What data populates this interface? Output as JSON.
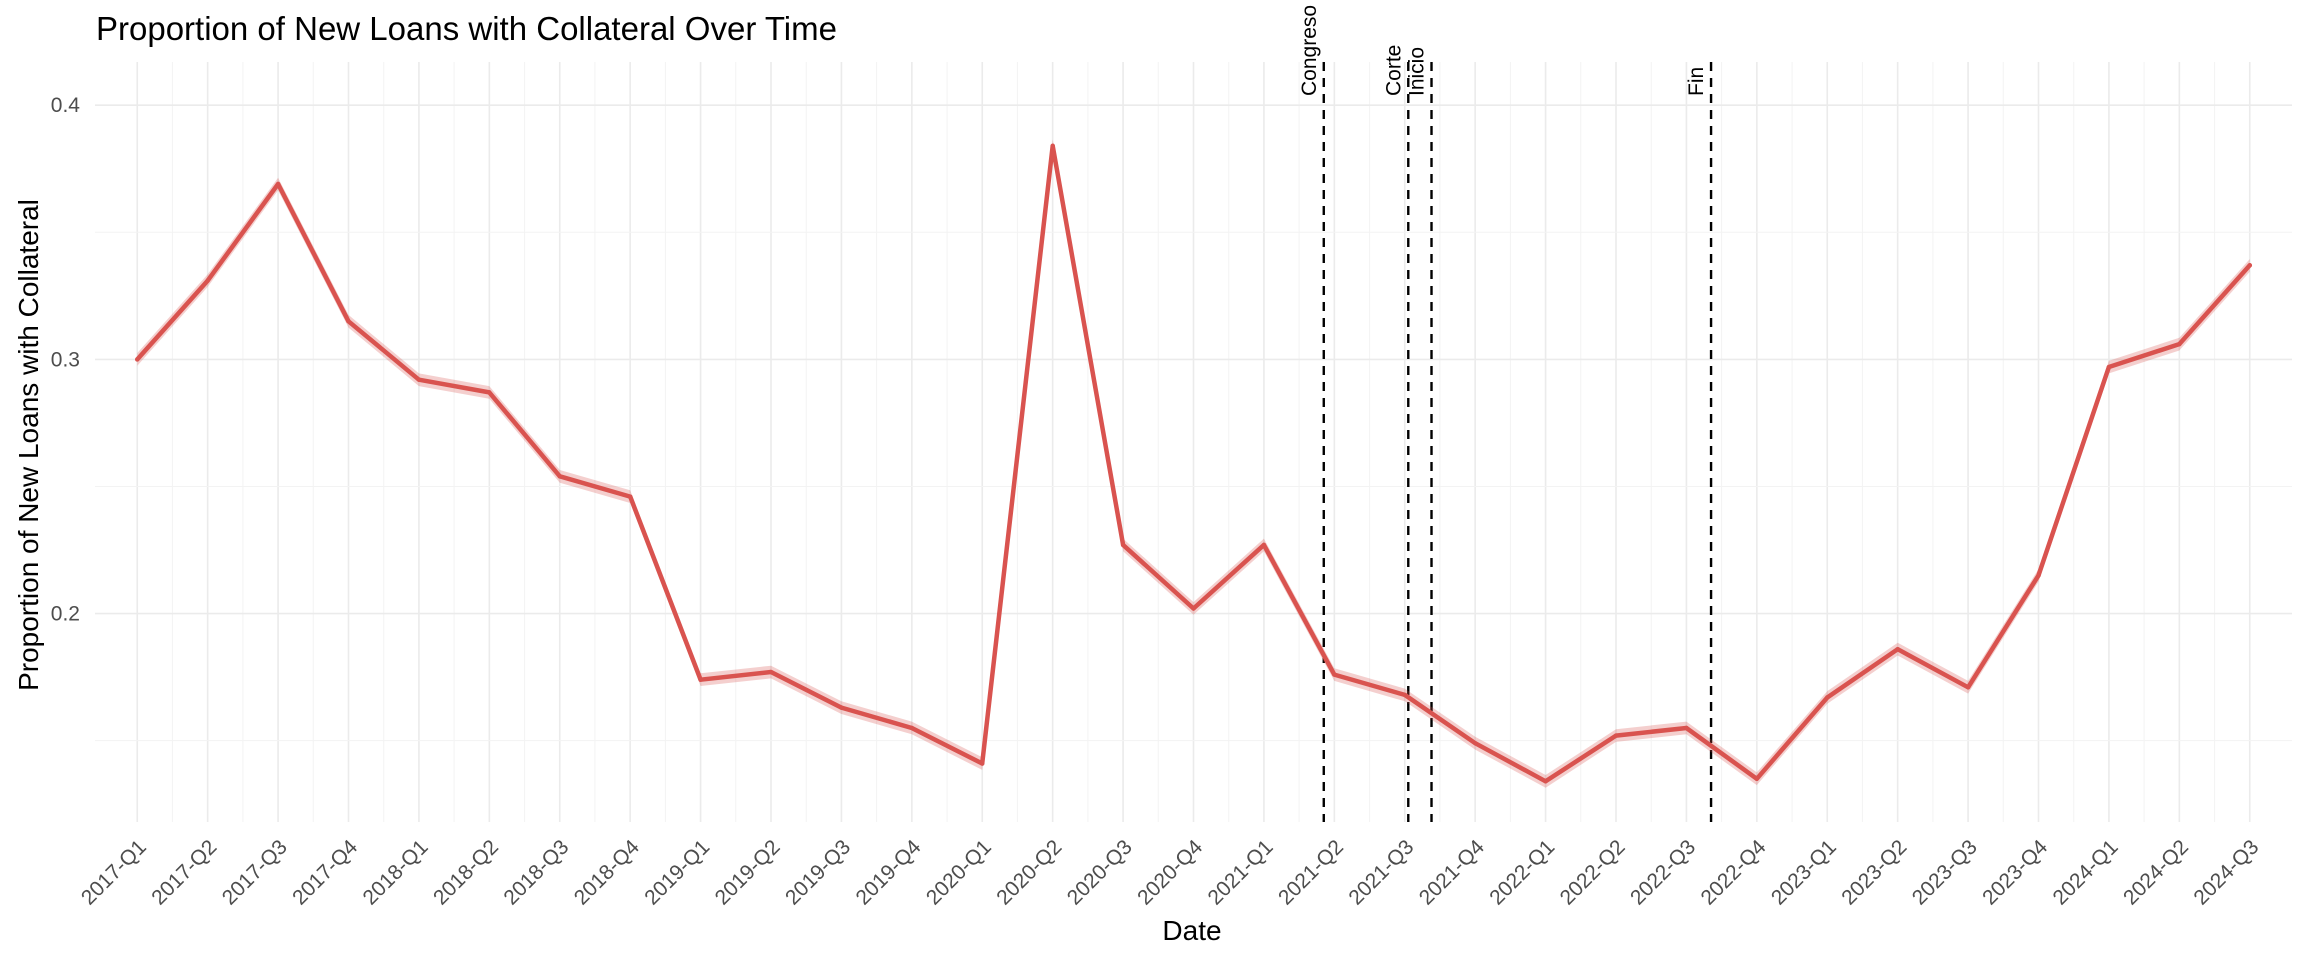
{
  "chart_data": {
    "type": "line",
    "title": "Proportion of New Loans with Collateral Over Time",
    "xlabel": "Date",
    "ylabel": "Proportion of New Loans with Collateral",
    "categories": [
      "2017-Q1",
      "2017-Q2",
      "2017-Q3",
      "2017-Q4",
      "2018-Q1",
      "2018-Q2",
      "2018-Q3",
      "2018-Q4",
      "2019-Q1",
      "2019-Q2",
      "2019-Q3",
      "2019-Q4",
      "2020-Q1",
      "2020-Q2",
      "2020-Q3",
      "2020-Q4",
      "2021-Q1",
      "2021-Q2",
      "2021-Q3",
      "2021-Q4",
      "2022-Q1",
      "2022-Q2",
      "2022-Q3",
      "2022-Q4",
      "2023-Q1",
      "2023-Q2",
      "2023-Q3",
      "2023-Q4",
      "2024-Q1",
      "2024-Q2",
      "2024-Q3"
    ],
    "series": [
      {
        "name": "",
        "color": "#d9534f",
        "values": [
          0.3,
          0.331,
          0.369,
          0.315,
          0.292,
          0.287,
          0.254,
          0.246,
          0.174,
          0.177,
          0.163,
          0.155,
          0.141,
          0.384,
          0.227,
          0.202,
          0.227,
          0.176,
          0.168,
          0.149,
          0.134,
          0.152,
          0.155,
          0.135,
          0.167,
          0.186,
          0.171,
          0.215,
          0.297,
          0.306,
          0.337
        ],
        "ribbon_halfwidth": 0.0025
      }
    ],
    "events": [
      {
        "label": "Congreso",
        "x_quarter": 17.85
      },
      {
        "label": "Corte",
        "x_quarter": 19.05
      },
      {
        "label": "Inicio",
        "x_quarter": 19.38
      },
      {
        "label": "Fin",
        "x_quarter": 23.35
      }
    ],
    "yticks": [
      0.2,
      0.3,
      0.4
    ],
    "ylim": [
      0.118,
      0.417
    ],
    "xlim": [
      0.4,
      31.6
    ],
    "grid": true,
    "legend": "none",
    "event_line_color": "#000000"
  }
}
